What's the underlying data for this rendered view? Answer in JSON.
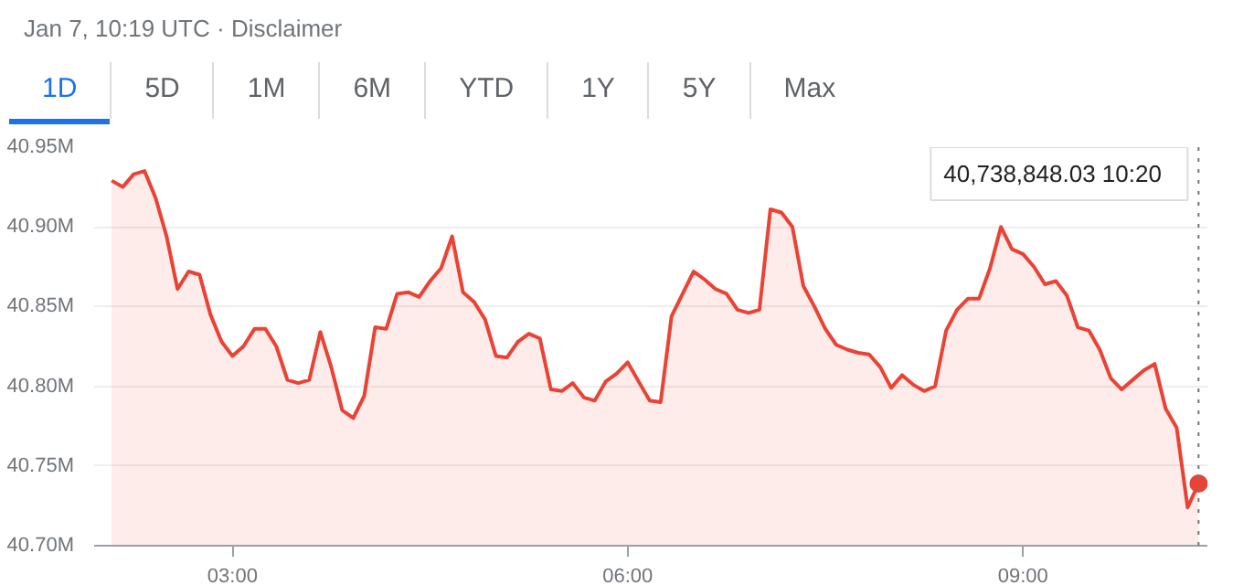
{
  "chart_data": {
    "type": "area",
    "title": "Jan 7, 10:19 UTC · Disclaimer",
    "annotations": [
      "1D",
      "5D",
      "1M",
      "6M",
      "YTD",
      "1Y",
      "5Y",
      "Max",
      "40,738,848.03   10:20"
    ],
    "x": [
      2.083,
      2.167,
      2.25,
      2.333,
      2.417,
      2.5,
      2.583,
      2.667,
      2.75,
      2.833,
      2.917,
      3,
      3.083,
      3.167,
      3.25,
      3.333,
      3.417,
      3.5,
      3.583,
      3.667,
      3.75,
      3.833,
      3.917,
      4,
      4.083,
      4.167,
      4.25,
      4.333,
      4.417,
      4.5,
      4.583,
      4.667,
      4.75,
      4.833,
      4.917,
      5,
      5.083,
      5.167,
      5.25,
      5.333,
      5.417,
      5.5,
      5.583,
      5.667,
      5.75,
      5.833,
      5.917,
      6,
      6.083,
      6.167,
      6.25,
      6.333,
      6.417,
      6.5,
      6.583,
      6.667,
      6.75,
      6.833,
      6.917,
      7,
      7.083,
      7.167,
      7.25,
      7.333,
      7.417,
      7.5,
      7.583,
      7.667,
      7.75,
      7.833,
      7.917,
      8,
      8.083,
      8.167,
      8.25,
      8.333,
      8.417,
      8.5,
      8.583,
      8.667,
      8.75,
      8.833,
      8.917,
      9,
      9.083,
      9.167,
      9.25,
      9.333,
      9.417,
      9.5,
      9.583,
      9.667,
      9.75,
      9.833,
      9.917,
      10,
      10.083,
      10.167,
      10.25,
      10.333
    ],
    "series": [
      {
        "color": "#ea4335",
        "values": [
          40.929,
          40.925,
          40.933,
          40.935,
          40.918,
          40.894,
          40.861,
          40.872,
          40.87,
          40.845,
          40.828,
          40.819,
          40.825,
          40.836,
          40.836,
          40.825,
          40.804,
          40.802,
          40.804,
          40.834,
          40.812,
          40.785,
          40.78,
          40.794,
          40.837,
          40.836,
          40.858,
          40.859,
          40.856,
          40.866,
          40.874,
          40.894,
          40.859,
          40.853,
          40.842,
          40.819,
          40.818,
          40.828,
          40.833,
          40.83,
          40.798,
          40.797,
          40.802,
          40.793,
          40.791,
          40.803,
          40.808,
          40.815,
          40.803,
          40.791,
          40.79,
          40.844,
          40.858,
          40.872,
          40.867,
          40.861,
          40.858,
          40.848,
          40.846,
          40.848,
          40.911,
          40.909,
          40.9,
          40.863,
          40.85,
          40.836,
          40.826,
          40.823,
          40.821,
          40.82,
          40.812,
          40.799,
          40.807,
          40.801,
          40.797,
          40.8,
          40.835,
          40.848,
          40.855,
          40.855,
          40.874,
          40.9,
          40.886,
          40.883,
          40.875,
          40.864,
          40.866,
          40.857,
          40.837,
          40.835,
          40.823,
          40.805,
          40.798,
          40.804,
          40.81,
          40.814,
          40.786,
          40.774,
          40.724,
          40.739
        ]
      }
    ],
    "xlim": [
      1.95,
      10.4
    ],
    "ylim": [
      40.7,
      40.95
    ],
    "xticks": [
      {
        "value": 3,
        "label": "03:00"
      },
      {
        "value": 6,
        "label": "06:00"
      },
      {
        "value": 9,
        "label": "09:00"
      }
    ],
    "yticks": [
      {
        "value": 40.7,
        "label": "40.70M"
      },
      {
        "value": 40.75,
        "label": "40.75M"
      },
      {
        "value": 40.8,
        "label": "40.80M"
      },
      {
        "value": 40.85,
        "label": "40.85M"
      },
      {
        "value": 40.9,
        "label": "40.90M"
      },
      {
        "value": 40.95,
        "label": "40.95M"
      }
    ],
    "ref_lines": [
      {
        "axis": "x",
        "value": 10.333,
        "color": "#757575",
        "line_style": "dotted"
      }
    ],
    "grid": "y"
  }
}
